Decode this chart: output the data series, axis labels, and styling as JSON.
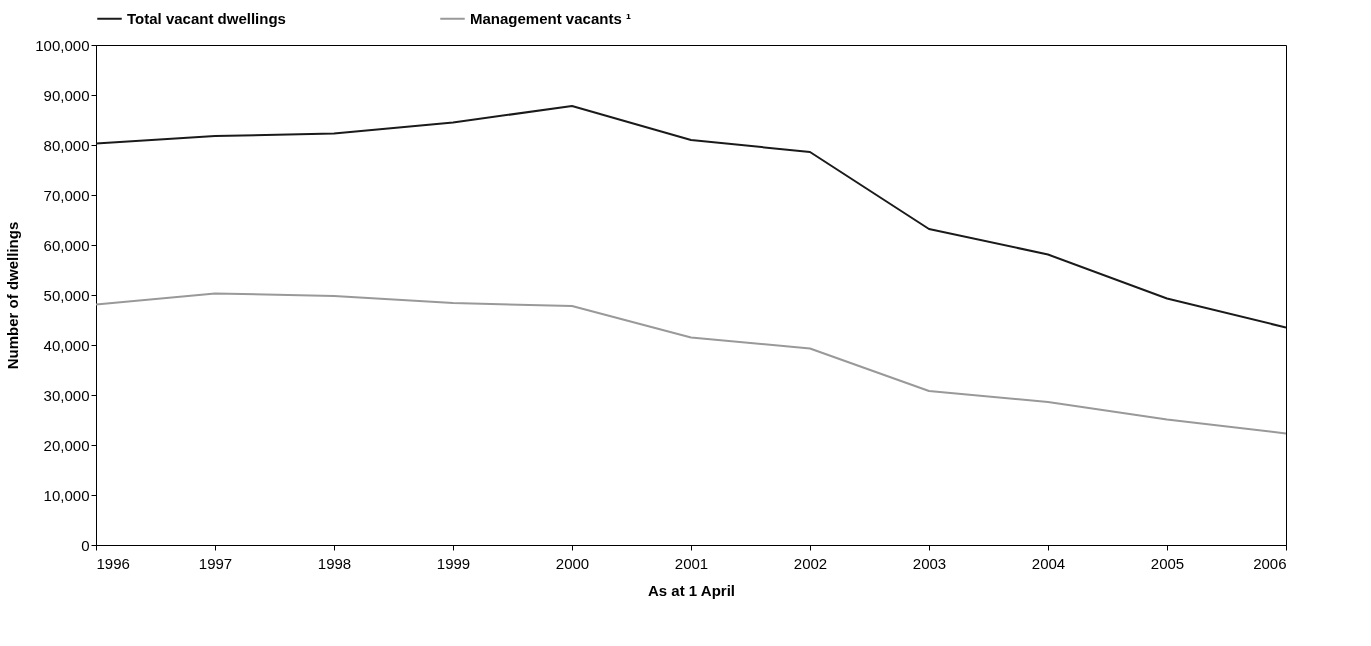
{
  "chart_data": {
    "type": "line",
    "xlabel": "As at 1 April",
    "ylabel": "Number of dwellings",
    "x": [
      1996,
      1997,
      1998,
      1999,
      2000,
      2001,
      2002,
      2003,
      2004,
      2005,
      2006
    ],
    "series": [
      {
        "name": "Total vacant dwellings",
        "color": "#1a1a1a",
        "values": [
          80300,
          81800,
          82300,
          84500,
          87800,
          81000,
          78600,
          63200,
          58100,
          49300,
          43500
        ]
      },
      {
        "name": "Management vacants ¹",
        "color": "#999999",
        "values": [
          48100,
          50300,
          49800,
          48400,
          47800,
          41500,
          39300,
          30800,
          28600,
          25100,
          22300
        ]
      }
    ],
    "xlim": [
      1996,
      2006
    ],
    "xticks": [
      1996,
      1997,
      1998,
      1999,
      2000,
      2001,
      2002,
      2003,
      2004,
      2005,
      2006
    ],
    "ylim": [
      0,
      100000
    ],
    "yticks": [
      0,
      {
        "value": 10000,
        "label": "10,000"
      },
      {
        "value": 20000,
        "label": "20,000"
      },
      {
        "value": 30000,
        "label": "30,000"
      },
      {
        "value": 40000,
        "label": "40,000"
      },
      {
        "value": 50000,
        "label": "50,000"
      },
      {
        "value": 60000,
        "label": "60,000"
      },
      {
        "value": 70000,
        "label": "70,000"
      },
      {
        "value": 80000,
        "label": "80,000"
      },
      {
        "value": 90000,
        "label": "90,000"
      },
      {
        "value": 100000,
        "label": "100,000"
      }
    ],
    "grid": false,
    "legend": "top",
    "marker": "none",
    "line_style": "solid"
  }
}
